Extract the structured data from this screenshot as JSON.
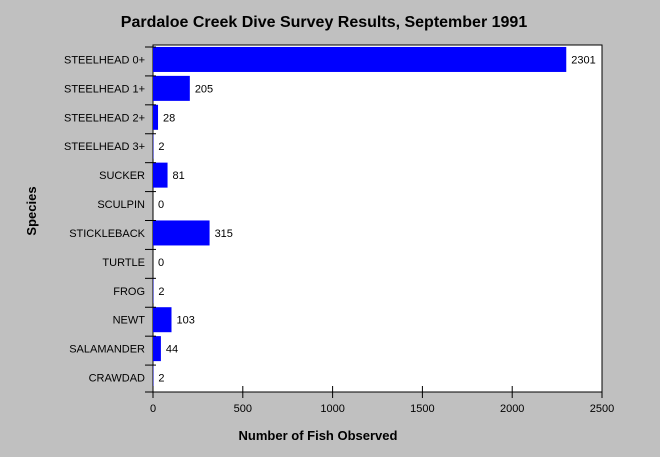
{
  "chart_data": {
    "type": "bar",
    "orientation": "horizontal",
    "title": "Pardaloe Creek Dive Survey Results, September 1991",
    "xlabel": "Number of Fish Observed",
    "ylabel": "Species",
    "categories": [
      "STEELHEAD 0+",
      "STEELHEAD 1+",
      "STEELHEAD 2+",
      "STEELHEAD 3+",
      "SUCKER",
      "SCULPIN",
      "STICKLEBACK",
      "TURTLE",
      "FROG",
      "NEWT",
      "SALAMANDER",
      "CRAWDAD"
    ],
    "values": [
      2301,
      205,
      28,
      2,
      81,
      0,
      315,
      0,
      2,
      103,
      44,
      2
    ],
    "xlim": [
      0,
      2500
    ],
    "xticks": [
      0,
      500,
      1000,
      1500,
      2000,
      2500
    ],
    "grid": false,
    "legend": "none",
    "colors": {
      "bar": "#0000ff",
      "plot_background": "#ffffff",
      "page_background": "#c0c0c0",
      "axis": "#000000"
    }
  }
}
